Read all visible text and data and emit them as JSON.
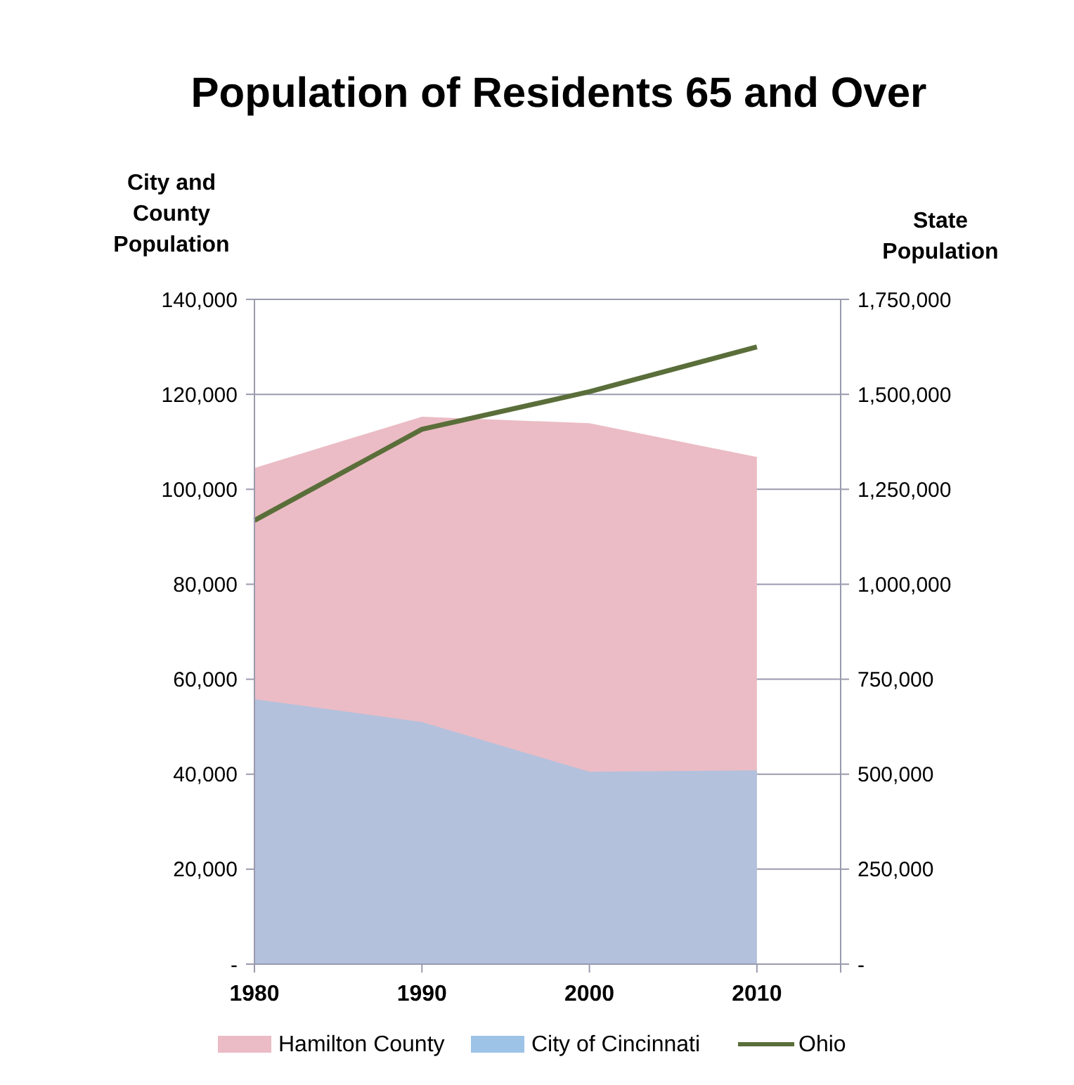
{
  "chart_data": {
    "type": "area",
    "title": "Population of Residents 65 and Over",
    "ylabel": "City and County Population",
    "y2label": "State Population",
    "x": [
      1980,
      1990,
      2000,
      2010
    ],
    "xlim": [
      1980,
      2015
    ],
    "xticks": [
      1980,
      1990,
      2000,
      2010,
      {
        "value": 2015,
        "label": null
      }
    ],
    "ylim": [
      0,
      140000
    ],
    "yticks": [
      {
        "value": 0,
        "label": "-"
      },
      {
        "value": 20000,
        "label": "20,000"
      },
      {
        "value": 40000,
        "label": "40,000"
      },
      {
        "value": 60000,
        "label": "60,000"
      },
      {
        "value": 80000,
        "label": "80,000"
      },
      {
        "value": 100000,
        "label": "100,000"
      },
      {
        "value": 120000,
        "label": "120,000"
      },
      {
        "value": 140000,
        "label": "140,000"
      }
    ],
    "y2lim": [
      0,
      1750000
    ],
    "y2ticks": [
      {
        "value": 0,
        "label": "-"
      },
      {
        "value": 250000,
        "label": "250,000"
      },
      {
        "value": 500000,
        "label": "500,000"
      },
      {
        "value": 750000,
        "label": "750,000"
      },
      {
        "value": 1000000,
        "label": "1,000,000"
      },
      {
        "value": 1250000,
        "label": "1,250,000"
      },
      {
        "value": 1500000,
        "label": "1,500,000"
      },
      {
        "value": 1750000,
        "label": "1,750,000"
      }
    ],
    "series": [
      {
        "name": "Hamilton County",
        "color": "#ebbcc5",
        "values": [
          104500,
          115300,
          113900,
          106800
        ]
      },
      {
        "name": "City of Cincinnati",
        "color": "#9dc3e6",
        "values": [
          55800,
          51000,
          40500,
          40800
        ]
      },
      {
        "name": "Ohio",
        "type": "line",
        "axis": "y2",
        "color": "#5a6e3a",
        "values": [
          1168000,
          1408000,
          1507000,
          1625000
        ]
      }
    ],
    "grid": "y",
    "legend": "bottom"
  }
}
